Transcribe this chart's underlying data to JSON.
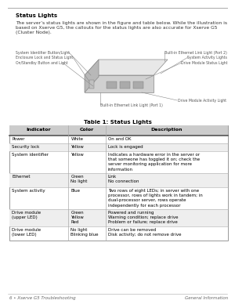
{
  "bg_color": "#ffffff",
  "title_bold": "Status Lights",
  "body_text1": "The server’s status lights are shown in the figure and table below. While the illustration is",
  "body_text2": "based on Xserve G5, the callouts for the status lights are also accurate for Xserve G5",
  "body_text3": "(Cluster Node).",
  "table_title": "Table 1: Status Lights",
  "col_headers": [
    "Indicator",
    "Color",
    "Description"
  ],
  "rows": [
    [
      "Power",
      "White",
      "On and OK"
    ],
    [
      "Security lock",
      "Yellow",
      "Lock is engaged"
    ],
    [
      "System identifier",
      "Yellow",
      "Indicates a hardware error in the server or\nthat someone has toggled it on; check the\nserver monitoring application for more\ninformation"
    ],
    [
      "Ethernet",
      "Green\nNo light",
      "Link\nNo connection"
    ],
    [
      "System activity",
      "Blue",
      "Two rows of eight LEDs; in server with one\nprocessor, rows of lights work in tandem; in\ndual-processor server, rows operate\nindependently for each processor"
    ],
    [
      "Drive module\n(upper LED)",
      "Green\nYellow\nRed",
      "Powered and running\nWarning condition; replace drive\nProblem or failure; replace drive"
    ],
    [
      "Drive module\n(lower LED)",
      "No light\nBlinking blue",
      "Drive can be removed\nDisk activity; do not remove drive"
    ]
  ],
  "footer_left": "6 • Xserve G5 Troubleshooting",
  "footer_right": "General Information",
  "top_line_color": "#999999",
  "header_bg": "#cccccc",
  "border_color": "#999999",
  "callout_items": [
    {
      "label": "System Identifier Button/Light",
      "side": "left",
      "rank": 0
    },
    {
      "label": "Enclosure Lock and Status Light",
      "side": "left",
      "rank": 1
    },
    {
      "label": "On/Standby Button and Light",
      "side": "left",
      "rank": 2
    },
    {
      "label": "Built-in Ethernet Link Light (Port 2)",
      "side": "right",
      "rank": 0
    },
    {
      "label": "System Activity Lights",
      "side": "right",
      "rank": 1
    },
    {
      "label": "Drive Module Status Light",
      "side": "right",
      "rank": 2
    },
    {
      "label": "Drive Module Activity Light",
      "side": "right_bottom",
      "rank": 0
    },
    {
      "label": "Built-in Ethernet Link Light (Port 1)",
      "side": "bottom",
      "rank": 0
    }
  ]
}
